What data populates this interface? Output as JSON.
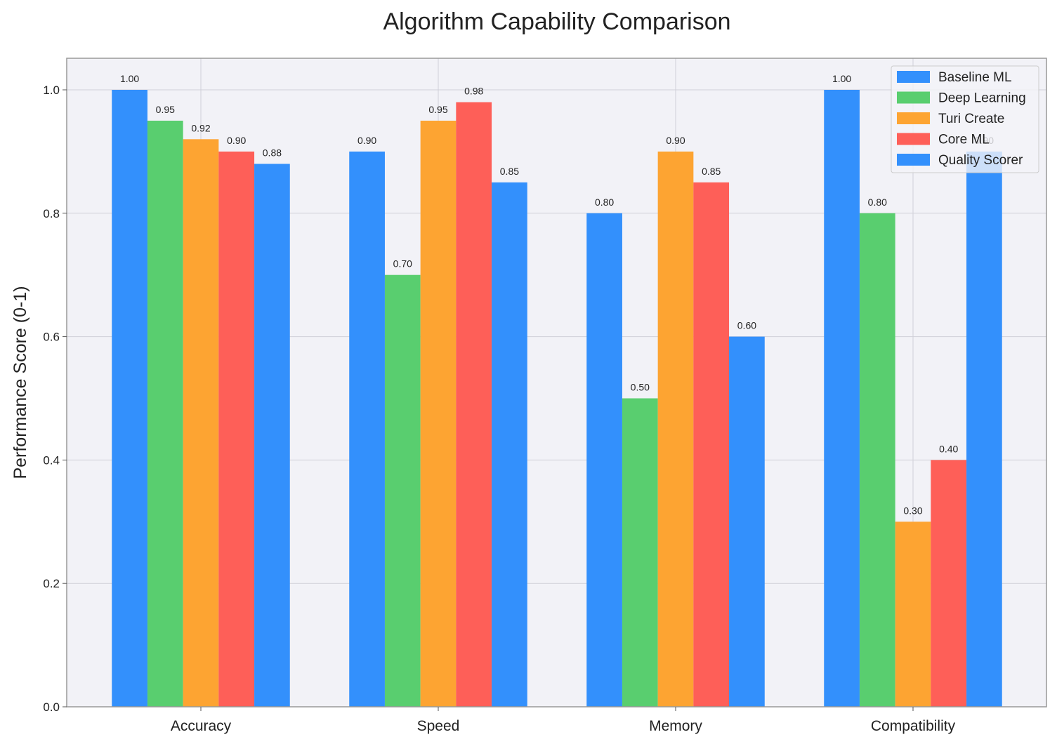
{
  "colors": {
    "plot_background": "#f2f2f7",
    "grid": "#d0d0d8",
    "axes_edge": "#999999",
    "text": "#222222"
  },
  "chart_data": {
    "type": "bar",
    "title": "Algorithm Capability Comparison",
    "xlabel": "",
    "ylabel": "Performance Score (0-1)",
    "ylim": [
      0,
      1.05
    ],
    "yticks": [
      0.0,
      0.2,
      0.4,
      0.6,
      0.8,
      1.0
    ],
    "ytick_labels": [
      "0.0",
      "0.2",
      "0.4",
      "0.6",
      "0.8",
      "1.0"
    ],
    "grid": true,
    "legend_position": "top-right",
    "categories": [
      "Accuracy",
      "Speed",
      "Memory",
      "Compatibility"
    ],
    "series": [
      {
        "name": "Baseline ML",
        "color": "#3390fc",
        "values": [
          1.0,
          0.9,
          0.8,
          1.0
        ],
        "labels": [
          "1.00",
          "0.90",
          "0.80",
          "1.00"
        ]
      },
      {
        "name": "Deep Learning",
        "color": "#59ce6f",
        "values": [
          0.95,
          0.7,
          0.5,
          0.8
        ],
        "labels": [
          "0.95",
          "0.70",
          "0.50",
          "0.80"
        ]
      },
      {
        "name": "Turi Create",
        "color": "#fda432",
        "values": [
          0.92,
          0.95,
          0.9,
          0.3
        ],
        "labels": [
          "0.92",
          "0.95",
          "0.90",
          "0.30"
        ]
      },
      {
        "name": "Core ML",
        "color": "#fe5f58",
        "values": [
          0.9,
          0.98,
          0.85,
          0.4
        ],
        "labels": [
          "0.90",
          "0.98",
          "0.85",
          "0.40"
        ]
      },
      {
        "name": "Quality Scorer",
        "color": "#3390fc",
        "values": [
          0.88,
          0.85,
          0.6,
          0.9
        ],
        "labels": [
          "0.88",
          "0.85",
          "0.60",
          "0.90"
        ]
      }
    ]
  }
}
